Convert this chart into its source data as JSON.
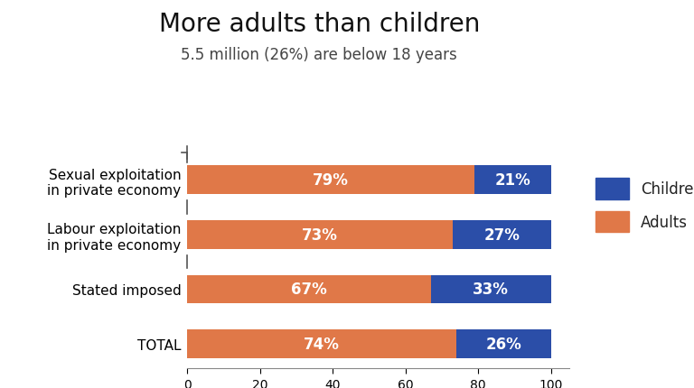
{
  "title": "More adults than children",
  "subtitle": "5.5 million (26%) are below 18 years",
  "categories": [
    "Sexual exploitation\nin private economy",
    "Labour exploitation\nin private economy",
    "Stated imposed",
    "TOTAL"
  ],
  "adults": [
    79,
    73,
    67,
    74
  ],
  "children": [
    21,
    27,
    33,
    26
  ],
  "adults_labels": [
    "79%",
    "73%",
    "67%",
    "74%"
  ],
  "children_labels": [
    "21%",
    "27%",
    "33%",
    "26%"
  ],
  "color_adults": "#E07848",
  "color_children": "#2B4EA8",
  "background_color": "#ffffff",
  "xlim": [
    0,
    105
  ],
  "xticks": [
    0,
    20,
    40,
    60,
    80,
    100
  ],
  "title_fontsize": 20,
  "subtitle_fontsize": 12,
  "label_fontsize": 11,
  "bar_label_fontsize": 12,
  "tick_fontsize": 10,
  "legend_fontsize": 12,
  "bar_height": 0.52
}
